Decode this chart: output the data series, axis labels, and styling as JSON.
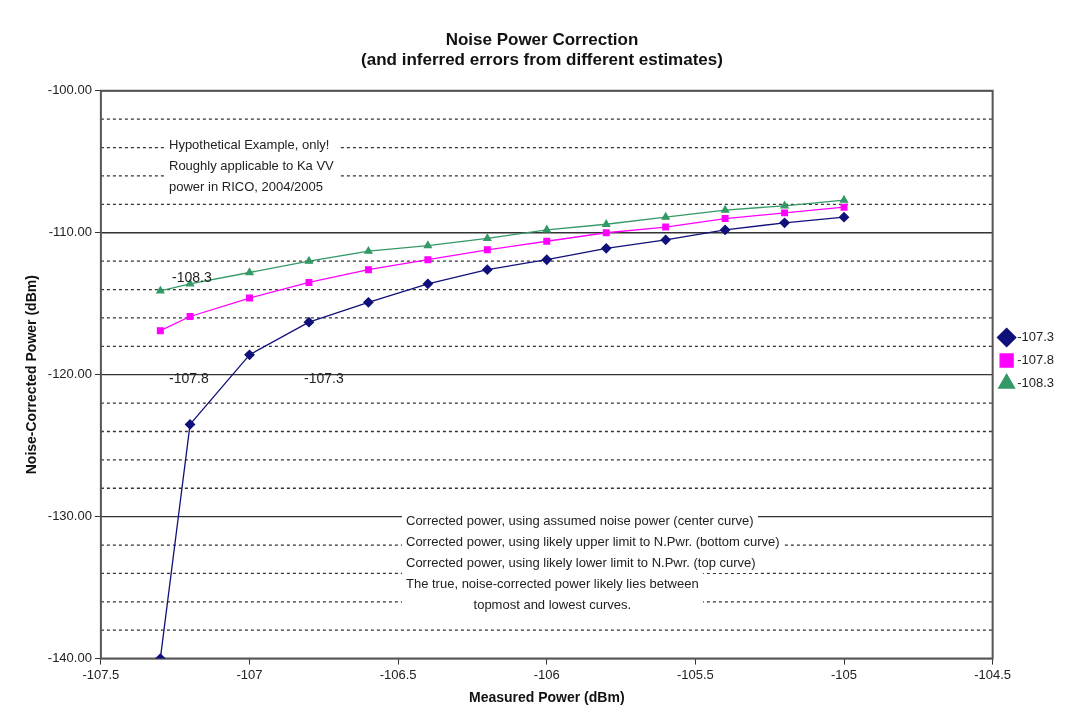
{
  "chart_data": {
    "type": "line",
    "title": "Noise Power Correction\n(and inferred errors from different estimates)",
    "xlabel": "Measured Power (dBm)",
    "ylabel": "Noise-Corrected Power (dBm)",
    "x": [
      -107.3,
      -107.2,
      -107,
      -106.8,
      -106.6,
      -106.4,
      -106.2,
      -106,
      -105.8,
      -105.6,
      -105.4,
      -105.2,
      -105
    ],
    "series": [
      {
        "name": "-107.3",
        "color": "#10107a",
        "marker": "diamond",
        "values": [
          -140,
          -123.5,
          -118.6,
          -116.3,
          -114.9,
          -113.6,
          -112.6,
          -111.9,
          -111.1,
          -110.5,
          -109.8,
          -109.3,
          -108.9
        ]
      },
      {
        "name": "-107.8",
        "color": "#ff00ff",
        "marker": "square",
        "values": [
          -116.9,
          -115.9,
          -114.6,
          -113.5,
          -112.6,
          -111.9,
          -111.2,
          -110.6,
          -110.0,
          -109.6,
          -109.0,
          -108.6,
          -108.2
        ]
      },
      {
        "name": "-108.3",
        "color": "#339966",
        "marker": "triangle",
        "values": [
          -114.1,
          -113.6,
          -112.8,
          -112.0,
          -111.3,
          -110.9,
          -110.4,
          -109.8,
          -109.4,
          -108.9,
          -108.4,
          -108.1,
          -107.7
        ]
      }
    ],
    "xlim": [
      -107.5,
      -104.5
    ],
    "xticks": [
      -107.5,
      -107,
      -106.5,
      -106,
      -105.5,
      -105,
      -104.5
    ],
    "ylim": [
      -140,
      -100
    ],
    "yticks": [
      {
        "value": -140,
        "label": "-140.00"
      },
      {
        "value": -138,
        "label": null
      },
      {
        "value": -136,
        "label": null
      },
      {
        "value": -134,
        "label": null
      },
      {
        "value": -132,
        "label": null
      },
      {
        "value": -130,
        "label": "-130.00"
      },
      {
        "value": -128,
        "label": null
      },
      {
        "value": -126,
        "label": null
      },
      {
        "value": -124,
        "label": null
      },
      {
        "value": -122,
        "label": null
      },
      {
        "value": -120,
        "label": "-120.00"
      },
      {
        "value": -118,
        "label": null
      },
      {
        "value": -116,
        "label": null
      },
      {
        "value": -114,
        "label": null
      },
      {
        "value": -112,
        "label": null
      },
      {
        "value": -110,
        "label": "-110.00"
      },
      {
        "value": -108,
        "label": null
      },
      {
        "value": -106,
        "label": null
      },
      {
        "value": -104,
        "label": null
      },
      {
        "value": -102,
        "label": null
      },
      {
        "value": -100,
        "label": "-100.00"
      }
    ],
    "grid": "y",
    "legend": "right",
    "line_style": "solid",
    "annotations": [
      "Hypothetical Example, only!\nRoughly applicable to Ka VV\npower in RICO, 2004/2005",
      "Corrected power, using assumed noise power (center curve)",
      "Corrected power, using likely upper limit to N.Pwr. (bottom curve)",
      "Corrected power, using likely lower limit to N.Pwr. (top curve)",
      "The true, noise-corrected power likely lies between\ntopmost and lowest curves.",
      "-108.3",
      "-107.8",
      "-107.3"
    ]
  }
}
